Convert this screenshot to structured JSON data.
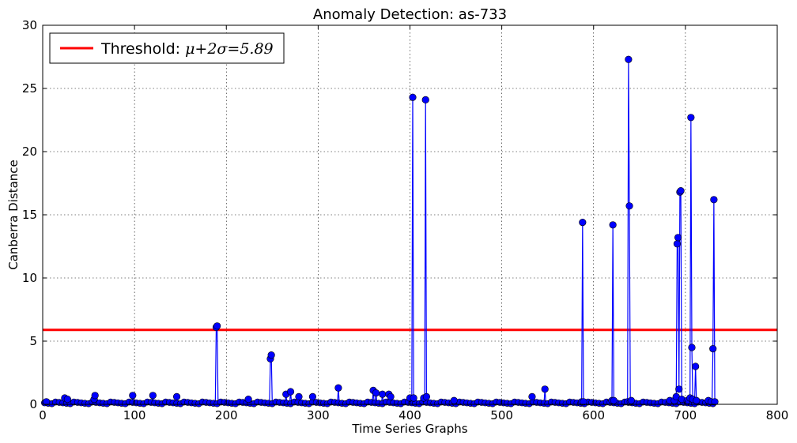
{
  "chart_data": {
    "type": "line",
    "title": "Anomaly Detection: as-733",
    "xlabel": "Time Series Graphs",
    "ylabel": "Canberra Distance",
    "xlim": [
      0,
      800
    ],
    "ylim": [
      0,
      30
    ],
    "xticks": [
      0,
      100,
      200,
      300,
      400,
      500,
      600,
      700,
      800
    ],
    "yticks": [
      0,
      5,
      10,
      15,
      20,
      25,
      30
    ],
    "grid": true,
    "legend_position": "top-left",
    "threshold": {
      "label_prefix": "Threshold: ",
      "label_math": "μ+2σ=5.89",
      "value": 5.89,
      "color": "#ff0000"
    },
    "series": [
      {
        "color": "#0000ff",
        "marker_color": "#0000ff",
        "x": [
          4,
          24,
          27,
          56,
          57,
          98,
          120,
          146,
          189,
          190,
          224,
          248,
          249,
          265,
          270,
          279,
          294,
          322,
          360,
          363,
          370,
          377,
          379,
          400,
          403,
          404,
          415,
          417,
          418,
          448,
          533,
          547,
          587,
          588,
          589,
          620,
          621,
          622,
          637,
          638,
          639,
          640,
          641,
          683,
          688,
          690,
          691,
          692,
          693,
          694,
          695,
          696,
          702,
          705,
          706,
          707,
          708,
          711,
          712,
          725,
          728,
          730,
          731,
          732
        ],
        "y": [
          0.2,
          0.5,
          0.4,
          0.4,
          0.7,
          0.7,
          0.7,
          0.6,
          6.1,
          6.2,
          0.4,
          3.6,
          3.9,
          0.8,
          1.0,
          0.6,
          0.6,
          1.3,
          1.1,
          0.9,
          0.8,
          0.8,
          0.6,
          0.5,
          24.3,
          0.5,
          0.5,
          24.1,
          0.6,
          0.3,
          0.6,
          1.2,
          0.2,
          14.4,
          0.2,
          0.3,
          14.2,
          0.3,
          0.2,
          27.3,
          15.7,
          0.2,
          0.3,
          0.3,
          0.3,
          0.6,
          12.7,
          13.2,
          1.2,
          16.8,
          16.9,
          0.4,
          0.3,
          0.5,
          22.7,
          4.5,
          0.4,
          3.0,
          0.3,
          0.3,
          0.2,
          4.4,
          16.2,
          0.2
        ]
      }
    ]
  }
}
